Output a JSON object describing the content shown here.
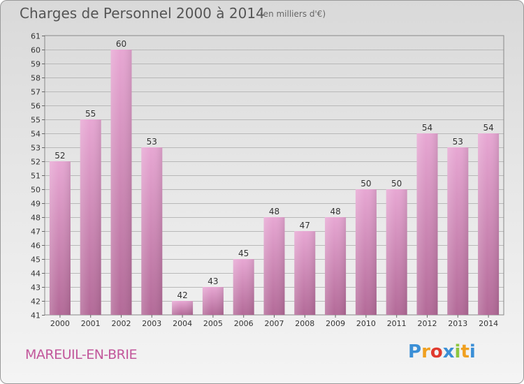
{
  "header": {
    "title": "Charges de Personnel 2000 à 2014",
    "subtitle": "(en milliers d'€)"
  },
  "footer": {
    "commune": "MAREUIL-EN-BRIE",
    "logo_letters": [
      "P",
      "r",
      "o",
      "x",
      "i",
      "t",
      "i"
    ],
    "logo_colors": [
      "#3b8fd6",
      "#f0a020",
      "#e03a2e",
      "#3b8fd6",
      "#8cc63f",
      "#f0a020",
      "#3b8fd6"
    ]
  },
  "chart_data": {
    "type": "bar",
    "categories": [
      "2000",
      "2001",
      "2002",
      "2003",
      "2004",
      "2005",
      "2006",
      "2007",
      "2008",
      "2009",
      "2010",
      "2011",
      "2012",
      "2013",
      "2014"
    ],
    "values": [
      52,
      55,
      60,
      53,
      42,
      43,
      45,
      48,
      47,
      48,
      50,
      50,
      54,
      53,
      54
    ],
    "ylim": [
      41,
      61
    ],
    "yticks": [
      41,
      42,
      43,
      44,
      45,
      46,
      47,
      48,
      49,
      50,
      51,
      52,
      53,
      54,
      55,
      56,
      57,
      58,
      59,
      60,
      61
    ],
    "grid": true,
    "bar_color_top": "#e7a7d3",
    "bar_color_bottom": "#b36a98"
  }
}
